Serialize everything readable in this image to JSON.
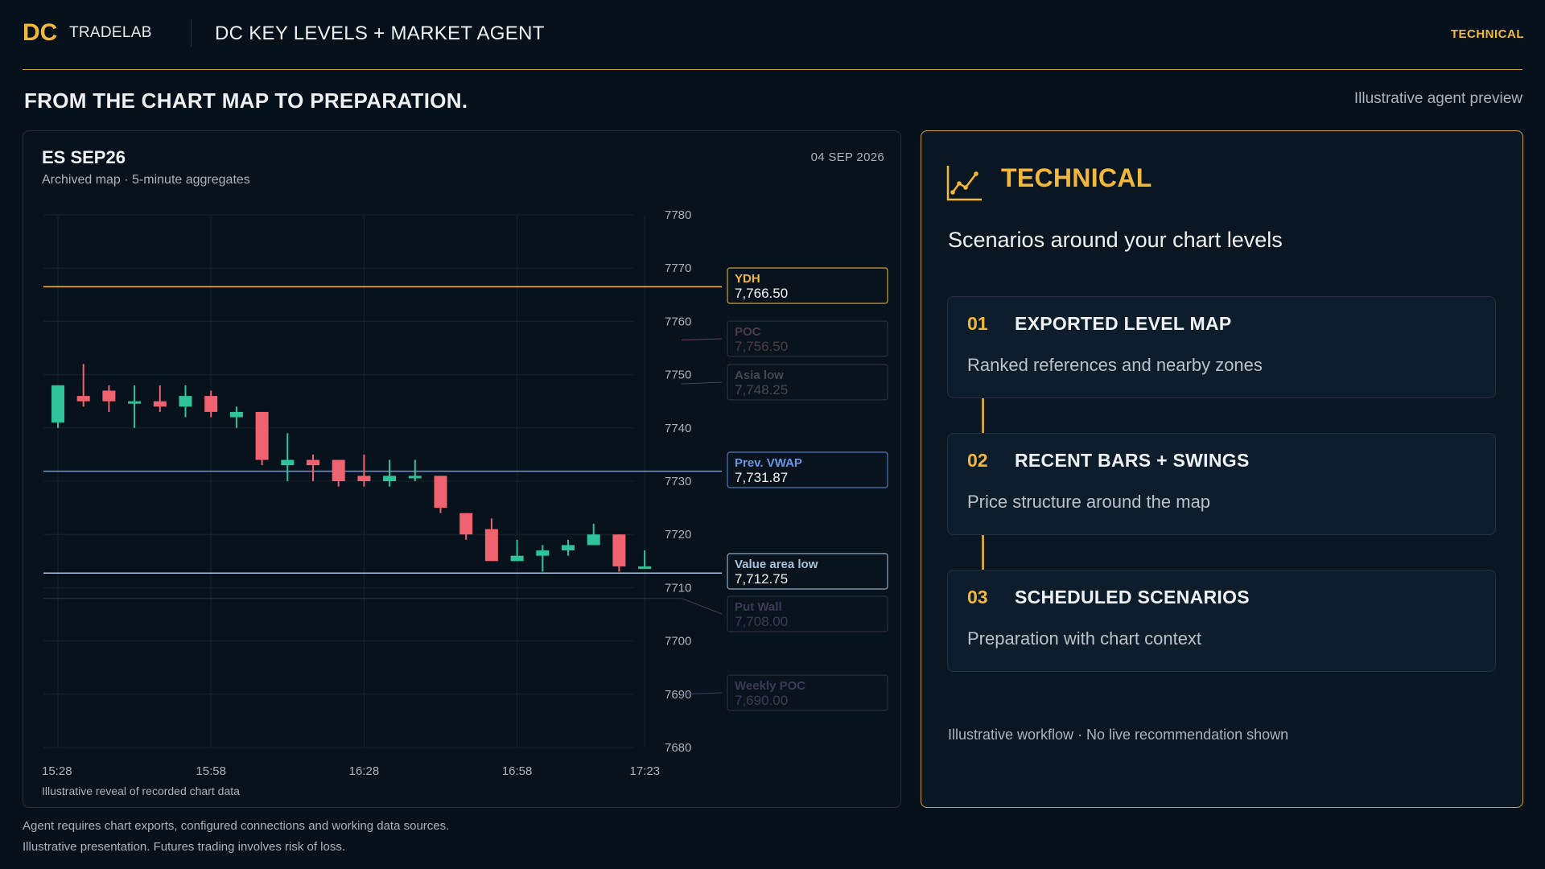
{
  "header": {
    "logo_mark": "DC",
    "brand": "TRADELAB",
    "title": "DC KEY LEVELS + MARKET AGENT",
    "tag": "TECHNICAL"
  },
  "section": {
    "title": "FROM THE CHART MAP TO PREPARATION.",
    "note": "Illustrative agent preview"
  },
  "chart_panel": {
    "symbol": "ES SEP26",
    "subtitle": "Archived map · 5-minute aggregates",
    "date": "04 SEP 2026",
    "caption": "Illustrative reveal of recorded chart data"
  },
  "chart_data": {
    "type": "candlestick",
    "ylim": [
      7680,
      7780
    ],
    "y_ticks": [
      7780,
      7770,
      7760,
      7750,
      7740,
      7730,
      7720,
      7710,
      7700,
      7690,
      7680
    ],
    "x_tick_labels": [
      "15:28",
      "15:58",
      "16:28",
      "16:58",
      "17:23"
    ],
    "colors": {
      "up": "#2fc39a",
      "down": "#ef6370"
    },
    "candles": [
      {
        "o": 7741,
        "h": 7748,
        "l": 7740,
        "c": 7748
      },
      {
        "o": 7746,
        "h": 7752,
        "l": 7744,
        "c": 7745
      },
      {
        "o": 7747,
        "h": 7748,
        "l": 7743,
        "c": 7745
      },
      {
        "o": 7745,
        "h": 7748,
        "l": 7740,
        "c": 7745
      },
      {
        "o": 7745,
        "h": 7748,
        "l": 7743,
        "c": 7744
      },
      {
        "o": 7744,
        "h": 7748,
        "l": 7742,
        "c": 7746
      },
      {
        "o": 7746,
        "h": 7747,
        "l": 7742,
        "c": 7743
      },
      {
        "o": 7742,
        "h": 7744,
        "l": 7740,
        "c": 7743
      },
      {
        "o": 7743,
        "h": 7743,
        "l": 7733,
        "c": 7734
      },
      {
        "o": 7733,
        "h": 7739,
        "l": 7730,
        "c": 7734
      },
      {
        "o": 7734,
        "h": 7735,
        "l": 7730,
        "c": 7733
      },
      {
        "o": 7734,
        "h": 7734,
        "l": 7729,
        "c": 7730
      },
      {
        "o": 7731,
        "h": 7735,
        "l": 7729,
        "c": 7730
      },
      {
        "o": 7730,
        "h": 7734,
        "l": 7729,
        "c": 7731
      },
      {
        "o": 7731,
        "h": 7734,
        "l": 7730,
        "c": 7731
      },
      {
        "o": 7731,
        "h": 7731,
        "l": 7724,
        "c": 7725
      },
      {
        "o": 7724,
        "h": 7724,
        "l": 7719,
        "c": 7720
      },
      {
        "o": 7721,
        "h": 7723,
        "l": 7715,
        "c": 7715
      },
      {
        "o": 7715,
        "h": 7719,
        "l": 7715,
        "c": 7716
      },
      {
        "o": 7716,
        "h": 7718,
        "l": 7713,
        "c": 7717
      },
      {
        "o": 7717,
        "h": 7719,
        "l": 7716,
        "c": 7718
      },
      {
        "o": 7718,
        "h": 7722,
        "l": 7718,
        "c": 7720
      },
      {
        "o": 7720,
        "h": 7720,
        "l": 7713,
        "c": 7714
      },
      {
        "o": 7714,
        "h": 7717,
        "l": 7714,
        "c": 7714
      }
    ],
    "levels": [
      {
        "name": "YDH",
        "price": 7766.5,
        "value": "7,766.50",
        "color": "#f2b83b",
        "text_color": "#f2f4f6",
        "border": "#c9a041",
        "active": true
      },
      {
        "name": "POC",
        "price": 7756.5,
        "value": "7,756.50",
        "color": "#6b3f57",
        "text_color": "#4d3a48",
        "border": "#2a2f3a",
        "active": false
      },
      {
        "name": "Asia low",
        "price": 7748.25,
        "value": "7,748.25",
        "color": "#3a4652",
        "text_color": "#3e4954",
        "border": "#2a333d",
        "active": false
      },
      {
        "name": "Prev. VWAP",
        "price": 7731.87,
        "value": "7,731.87",
        "color": "#6d95e0",
        "text_color": "#f2f4f6",
        "border": "#5276b8",
        "active": true
      },
      {
        "name": "Value area low",
        "price": 7712.75,
        "value": "7,712.75",
        "color": "#a7c3de",
        "text_color": "#f2f4f6",
        "border": "#8fa9c4",
        "active": true
      },
      {
        "name": "Put Wall",
        "price": 7708.0,
        "value": "7,708.00",
        "color": "#3e3e5c",
        "text_color": "#3c3c55",
        "border": "#2a2f3a",
        "active": false
      },
      {
        "name": "Weekly POC",
        "price": 7690.0,
        "value": "7,690.00",
        "color": "#3e3e5c",
        "text_color": "#3c3c55",
        "border": "#2a2f3a",
        "active": false
      }
    ]
  },
  "tech_panel": {
    "title": "TECHNICAL",
    "subtitle": "Scenarios around your chart levels",
    "icon": "line-chart-icon",
    "steps": [
      {
        "num": "01",
        "title": "EXPORTED LEVEL MAP",
        "desc": "Ranked references and nearby zones"
      },
      {
        "num": "02",
        "title": "RECENT BARS + SWINGS",
        "desc": "Price structure around the map"
      },
      {
        "num": "03",
        "title": "SCHEDULED SCENARIOS",
        "desc": "Preparation with chart context"
      }
    ],
    "note": "Illustrative workflow · No live recommendation shown"
  },
  "disclaimers": [
    "Agent requires chart exports, configured connections and working data sources.",
    "Illustrative presentation. Futures trading involves risk of loss."
  ]
}
